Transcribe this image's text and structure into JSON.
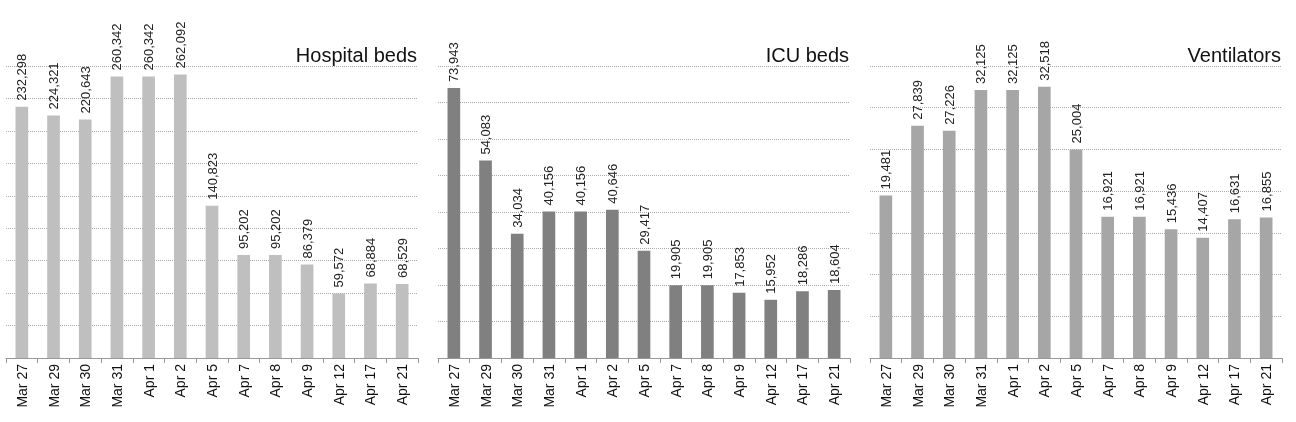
{
  "chart_data": [
    {
      "type": "bar",
      "title": "Hospital beds",
      "categories": [
        "Mar 27",
        "Mar 29",
        "Mar 30",
        "Mar 31",
        "Apr 1",
        "Apr 2",
        "Apr 5",
        "Apr 7",
        "Apr 8",
        "Apr 9",
        "Apr 12",
        "Apr 17",
        "Apr 21"
      ],
      "values": [
        232298,
        224321,
        220643,
        260342,
        260342,
        262092,
        140823,
        95202,
        95202,
        86379,
        59572,
        68884,
        68529
      ],
      "value_labels": [
        "232,298",
        "224,321",
        "220,643",
        "260,342",
        "260,342",
        "262,092",
        "140,823",
        "95,202",
        "95,202",
        "86,379",
        "59,572",
        "68,884",
        "68,529"
      ],
      "color": "#bfbfbf",
      "grid": "y",
      "tick_labels": "x"
    },
    {
      "type": "bar",
      "title": "ICU beds",
      "categories": [
        "Mar 27",
        "Mar 29",
        "Mar 30",
        "Mar 31",
        "Apr 1",
        "Apr 2",
        "Apr 5",
        "Apr 7",
        "Apr 8",
        "Apr 9",
        "Apr 12",
        "Apr 17",
        "Apr 21"
      ],
      "values": [
        73943,
        54083,
        34034,
        40156,
        40156,
        40646,
        29417,
        19905,
        19905,
        17853,
        15952,
        18286,
        18604
      ],
      "value_labels": [
        "73,943",
        "54,083",
        "34,034",
        "40,156",
        "40,156",
        "40,646",
        "29,417",
        "19,905",
        "19,905",
        "17,853",
        "15,952",
        "18,286",
        "18,604"
      ],
      "color": "#808080",
      "grid": "y",
      "tick_labels": "x"
    },
    {
      "type": "bar",
      "title": "Ventilators",
      "categories": [
        "Mar 27",
        "Mar 29",
        "Mar 30",
        "Mar 31",
        "Apr 1",
        "Apr 2",
        "Apr 5",
        "Apr 7",
        "Apr 8",
        "Apr 9",
        "Apr 12",
        "Apr 17",
        "Apr 21"
      ],
      "values": [
        19481,
        27839,
        27226,
        32125,
        32125,
        32518,
        25004,
        16921,
        16921,
        15436,
        14407,
        16631,
        16855
      ],
      "value_labels": [
        "19,481",
        "27,839",
        "27,226",
        "32,125",
        "32,125",
        "32,518",
        "25,004",
        "16,921",
        "16,921",
        "15,436",
        "14,407",
        "16,631",
        "16,855"
      ],
      "color": "#a6a6a6",
      "grid": "y",
      "tick_labels": "x"
    }
  ]
}
